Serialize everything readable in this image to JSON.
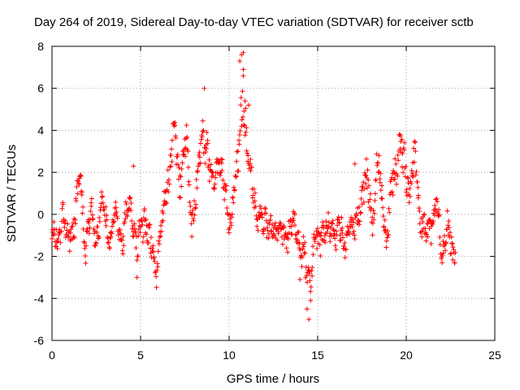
{
  "chart_data": {
    "type": "scatter",
    "title": "Day 264 of 2019, Sidereal Day-to-day VTEC variation (SDTVAR) for receiver sctb",
    "xlabel": "GPS time / hours",
    "ylabel": "SDTVAR / TECUs",
    "xlim": [
      0,
      25
    ],
    "ylim": [
      -6,
      8
    ],
    "xticks": [
      "0",
      "5",
      "10",
      "15",
      "20",
      "25"
    ],
    "yticks": [
      "-6",
      "-4",
      "-2",
      "0",
      "2",
      "4",
      "6",
      "8"
    ],
    "grid": true,
    "marker": "+",
    "series": [
      {
        "name": "SDTVAR",
        "color": "#ff0000",
        "trace": [
          [
            0.0,
            -1.0,
            0.5
          ],
          [
            0.3,
            -1.4,
            0.5
          ],
          [
            0.6,
            0.2,
            0.4
          ],
          [
            0.9,
            -1.5,
            0.4
          ],
          [
            1.2,
            -0.5,
            0.6
          ],
          [
            1.6,
            1.6,
            0.4
          ],
          [
            1.9,
            -1.5,
            0.5
          ],
          [
            2.2,
            0.0,
            0.5
          ],
          [
            2.5,
            -1.2,
            0.5
          ],
          [
            2.8,
            0.6,
            0.4
          ],
          [
            3.2,
            -1.0,
            0.5
          ],
          [
            3.6,
            -0.2,
            0.5
          ],
          [
            4.0,
            -1.2,
            0.4
          ],
          [
            4.4,
            0.8,
            0.4
          ],
          [
            4.8,
            -1.8,
            0.6
          ],
          [
            5.2,
            0.0,
            0.6
          ],
          [
            5.6,
            -1.8,
            0.6
          ],
          [
            5.9,
            -2.5,
            0.4
          ],
          [
            6.3,
            0.2,
            0.5
          ],
          [
            6.6,
            2.0,
            0.7
          ],
          [
            6.9,
            4.0,
            0.5
          ],
          [
            7.2,
            1.5,
            0.7
          ],
          [
            7.6,
            3.5,
            0.6
          ],
          [
            7.9,
            -0.5,
            0.6
          ],
          [
            8.3,
            2.5,
            0.6
          ],
          [
            8.6,
            4.0,
            1.0
          ],
          [
            9.0,
            1.5,
            0.5
          ],
          [
            9.4,
            2.5,
            0.5
          ],
          [
            9.8,
            1.0,
            0.6
          ],
          [
            10.1,
            -0.5,
            0.5
          ],
          [
            10.4,
            1.5,
            0.6
          ],
          [
            10.6,
            4.0,
            1.2
          ],
          [
            10.8,
            6.0,
            1.2
          ],
          [
            11.0,
            2.5,
            0.8
          ],
          [
            11.3,
            2.0,
            0.6
          ],
          [
            11.6,
            -0.5,
            0.5
          ],
          [
            12.0,
            0.0,
            0.5
          ],
          [
            12.3,
            -1.0,
            0.5
          ],
          [
            12.7,
            -0.6,
            0.5
          ],
          [
            13.1,
            -1.3,
            0.5
          ],
          [
            13.5,
            -0.4,
            0.5
          ],
          [
            13.9,
            -1.2,
            0.4
          ],
          [
            14.2,
            -1.8,
            0.6
          ],
          [
            14.5,
            -3.5,
            0.7
          ],
          [
            14.8,
            -1.0,
            0.6
          ],
          [
            15.1,
            -1.6,
            0.6
          ],
          [
            15.4,
            -0.3,
            0.5
          ],
          [
            15.8,
            -1.2,
            0.5
          ],
          [
            16.2,
            -0.5,
            0.5
          ],
          [
            16.5,
            -1.8,
            0.5
          ],
          [
            16.8,
            -0.2,
            0.4
          ],
          [
            17.1,
            -1.0,
            0.5
          ],
          [
            17.4,
            0.8,
            0.6
          ],
          [
            17.8,
            1.5,
            0.7
          ],
          [
            18.1,
            0.0,
            0.6
          ],
          [
            18.4,
            2.5,
            0.6
          ],
          [
            18.7,
            0.5,
            0.5
          ],
          [
            18.9,
            -1.6,
            0.4
          ],
          [
            19.2,
            1.5,
            0.6
          ],
          [
            19.6,
            3.0,
            0.7
          ],
          [
            19.9,
            2.5,
            0.8
          ],
          [
            20.2,
            1.0,
            0.7
          ],
          [
            20.5,
            2.5,
            0.6
          ],
          [
            20.8,
            0.0,
            0.6
          ],
          [
            21.1,
            -1.2,
            0.5
          ],
          [
            21.4,
            -0.3,
            0.6
          ],
          [
            21.7,
            0.6,
            0.5
          ],
          [
            22.0,
            -1.8,
            0.5
          ],
          [
            22.3,
            -0.5,
            0.6
          ],
          [
            22.6,
            -2.0,
            0.6
          ],
          [
            22.8,
            -1.2,
            0.5
          ]
        ],
        "extra_points": [
          [
            10.7,
            7.6
          ],
          [
            10.6,
            7.3
          ],
          [
            10.8,
            7.7
          ],
          [
            10.8,
            6.6
          ],
          [
            8.6,
            6.0
          ],
          [
            14.5,
            -5.0
          ],
          [
            14.4,
            -4.5
          ],
          [
            14.6,
            -4.1
          ],
          [
            4.8,
            -3.0
          ],
          [
            4.6,
            2.3
          ],
          [
            17.1,
            2.4
          ],
          [
            14.0,
            -3.1
          ],
          [
            10.9,
            5.4
          ],
          [
            11.1,
            5.2
          ]
        ]
      }
    ]
  }
}
